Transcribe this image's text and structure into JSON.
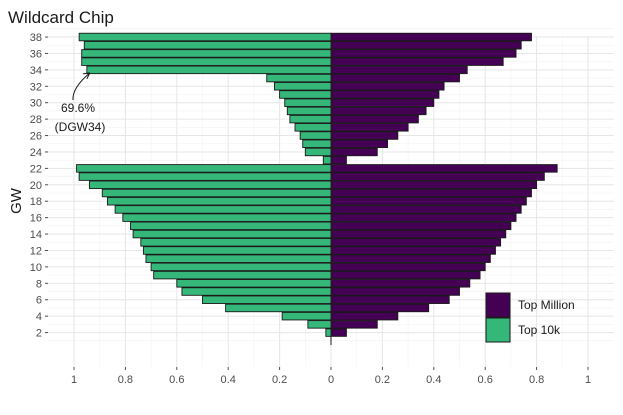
{
  "chart_data": {
    "type": "bar",
    "orientation": "horizontal-butterfly",
    "title": "Wildcard Chip",
    "ylabel": "GW",
    "xlabel": "",
    "x_ticks": [
      "1",
      "0.8",
      "0.6",
      "0.4",
      "0.2",
      "0",
      "0.2",
      "0.4",
      "0.6",
      "0.8",
      "1"
    ],
    "y_ticks": [
      "2",
      "4",
      "6",
      "8",
      "10",
      "12",
      "14",
      "16",
      "18",
      "20",
      "22",
      "24",
      "26",
      "28",
      "30",
      "32",
      "34",
      "36",
      "38"
    ],
    "xlim": [
      -1.1,
      1.1
    ],
    "ylim": [
      0.5,
      39.5
    ],
    "grid": true,
    "legend_position": "bottom-right",
    "categories": [
      1,
      2,
      3,
      4,
      5,
      6,
      7,
      8,
      9,
      10,
      11,
      12,
      13,
      14,
      15,
      16,
      17,
      18,
      19,
      20,
      21,
      22,
      23,
      24,
      25,
      26,
      27,
      28,
      29,
      30,
      31,
      32,
      33,
      34,
      35,
      36,
      37,
      38
    ],
    "series": [
      {
        "name": "Top Million",
        "side": "right",
        "color": "#440154",
        "values": [
          0.0,
          0.06,
          0.18,
          0.26,
          0.38,
          0.46,
          0.5,
          0.54,
          0.58,
          0.6,
          0.62,
          0.64,
          0.66,
          0.68,
          0.7,
          0.72,
          0.74,
          0.76,
          0.78,
          0.8,
          0.83,
          0.88,
          0.06,
          0.18,
          0.22,
          0.26,
          0.3,
          0.34,
          0.37,
          0.4,
          0.42,
          0.44,
          0.5,
          0.53,
          0.67,
          0.72,
          0.74,
          0.78
        ]
      },
      {
        "name": "Top 10k",
        "side": "left",
        "color": "#35b779",
        "values": [
          0.0,
          0.02,
          0.09,
          0.19,
          0.41,
          0.5,
          0.58,
          0.6,
          0.69,
          0.7,
          0.72,
          0.73,
          0.74,
          0.77,
          0.78,
          0.81,
          0.84,
          0.87,
          0.89,
          0.94,
          0.98,
          0.99,
          0.03,
          0.1,
          0.11,
          0.12,
          0.14,
          0.16,
          0.17,
          0.18,
          0.2,
          0.22,
          0.25,
          0.95,
          0.97,
          0.97,
          0.96,
          0.98
        ]
      }
    ],
    "annotation": {
      "line1": "69.6%",
      "line2": "(DGW34)",
      "gw": 34,
      "value": 0.95
    }
  }
}
